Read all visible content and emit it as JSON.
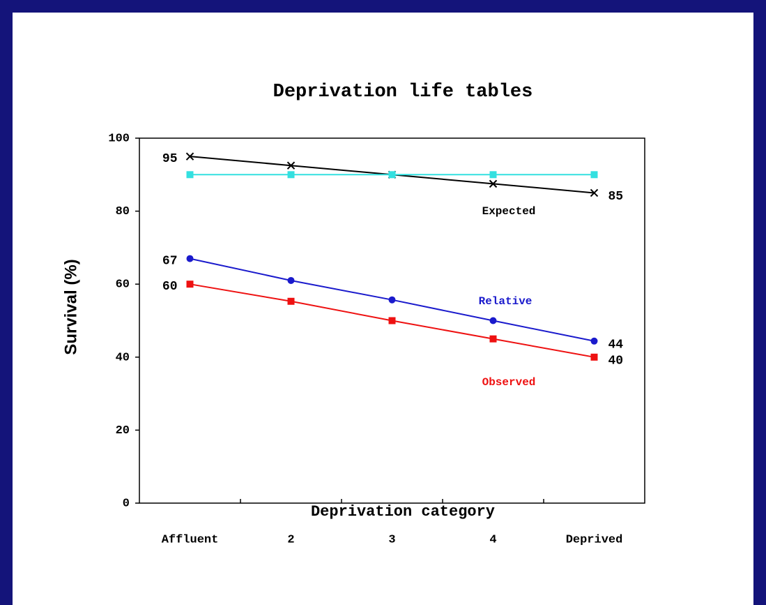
{
  "chart_data": {
    "type": "line",
    "title": "Deprivation life tables",
    "x_label": "Deprivation category",
    "y_label": "Survival (%)",
    "categories": [
      "Affluent",
      "2",
      "3",
      "4",
      "Deprived"
    ],
    "ylim": [
      0,
      100
    ],
    "yticks": [
      0,
      20,
      40,
      60,
      80,
      100
    ],
    "series": [
      {
        "name": "Expected",
        "color": "#000000",
        "marker": "x",
        "values": [
          95,
          92.5,
          90,
          87.5,
          85
        ],
        "value_labels": [
          "95",
          null,
          null,
          null,
          "85"
        ]
      },
      {
        "color": "#33e0e0",
        "marker": "square",
        "values": [
          90,
          90,
          90,
          90,
          90
        ]
      },
      {
        "name": "Relative",
        "color": "#1a1acc",
        "marker": "circle",
        "values": [
          67,
          61,
          55.7,
          50,
          44.4
        ],
        "value_labels": [
          "67",
          null,
          null,
          null,
          "44"
        ]
      },
      {
        "name": "Observed",
        "color": "#ee1111",
        "marker": "square",
        "values": [
          60,
          55.3,
          50,
          45,
          40
        ],
        "value_labels": [
          "60",
          null,
          null,
          null,
          "40"
        ]
      }
    ]
  }
}
